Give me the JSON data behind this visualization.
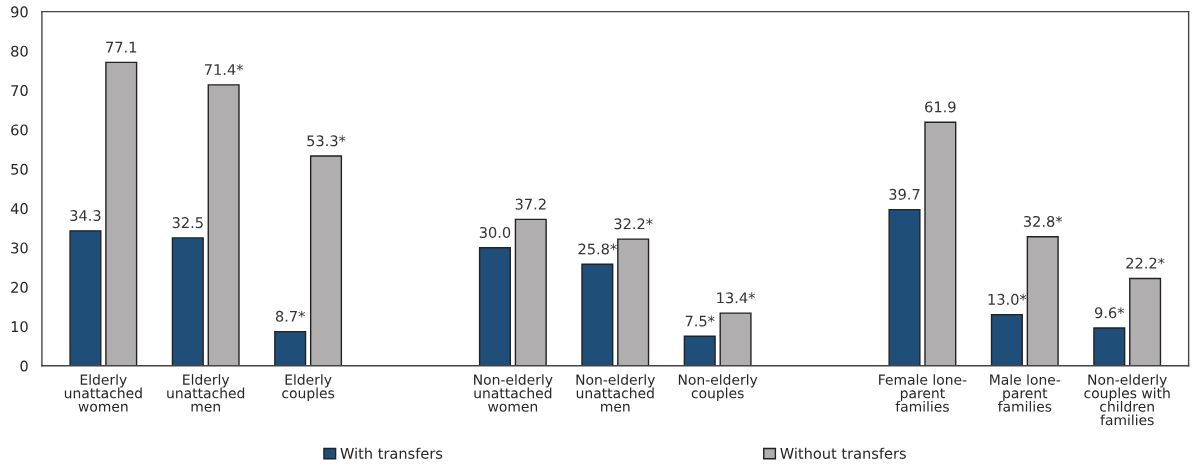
{
  "chart_data": {
    "type": "bar",
    "categories": [
      "Elderly\nunattached\nwomen",
      "Elderly\nunattached\nmen",
      "Elderly\ncouples",
      null,
      "Non-elderly\nunattached\nwomen",
      "Non-elderly\nunattached\nmen",
      "Non-elderly\ncouples",
      null,
      "Female lone-\nparent\nfamilies",
      "Male lone-\nparent\nfamilies",
      "Non-elderly\ncouples with\nchildren\nfamilies"
    ],
    "series": [
      {
        "name": "With transfers",
        "color": "#1f4e79",
        "values": [
          34.3,
          32.5,
          8.7,
          null,
          30.0,
          25.8,
          7.5,
          null,
          39.7,
          13.0,
          9.6
        ],
        "value_labels": [
          "34.3",
          "32.5",
          "8.7*",
          null,
          "30.0",
          "25.8*",
          "7.5*",
          null,
          "39.7",
          "13.0*",
          "9.6*"
        ]
      },
      {
        "name": "Without transfers",
        "color": "#b0aeae",
        "values": [
          77.1,
          71.4,
          53.3,
          null,
          37.2,
          32.2,
          13.4,
          null,
          61.9,
          32.8,
          22.2
        ],
        "value_labels": [
          "77.1",
          "71.4*",
          "53.3*",
          null,
          "37.2",
          "32.2*",
          "13.4*",
          null,
          "61.9",
          "32.8*",
          "22.2*"
        ]
      }
    ],
    "ylim": [
      0,
      90
    ],
    "yticks": [
      0,
      10,
      20,
      30,
      40,
      50,
      60,
      70,
      80,
      90
    ],
    "grid": false,
    "legend": "bottom"
  }
}
